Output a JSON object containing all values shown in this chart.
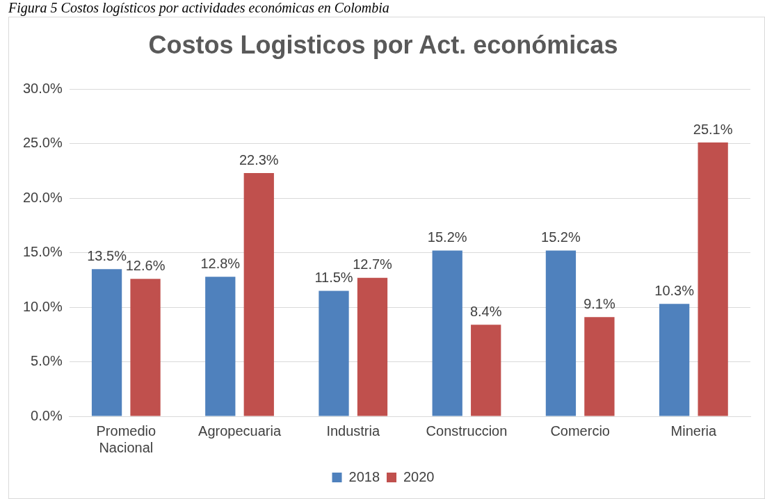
{
  "chart_data": {
    "type": "bar",
    "title": "Costos Logisticos por Act. económicas",
    "categories": [
      "Promedio Nacional",
      "Agropecuaria",
      "Industria",
      "Construccion",
      "Comercio",
      "Mineria"
    ],
    "series": [
      {
        "name": "2018",
        "color": "#4f81bd",
        "values": [
          13.5,
          12.8,
          11.5,
          15.2,
          15.2,
          10.3
        ],
        "value_labels": [
          "13.5%",
          "12.8%",
          "11.5%",
          "15.2%",
          "15.2%",
          "10.3%"
        ]
      },
      {
        "name": "2020",
        "color": "#c0504d",
        "values": [
          12.6,
          22.3,
          12.7,
          8.4,
          9.1,
          25.1
        ],
        "value_labels": [
          "12.6%",
          "22.3%",
          "12.7%",
          "8.4%",
          "9.1%",
          "25.1%"
        ]
      }
    ],
    "ylim": [
      0,
      30
    ],
    "yticks": [
      {
        "value": 0,
        "label": "0.0%"
      },
      {
        "value": 5,
        "label": "5.0%"
      },
      {
        "value": 10,
        "label": "10.0%"
      },
      {
        "value": 15,
        "label": "15.0%"
      },
      {
        "value": 20,
        "label": "20.0%"
      },
      {
        "value": 25,
        "label": "25.0%"
      },
      {
        "value": 30,
        "label": "30.0%"
      }
    ],
    "grid": "y",
    "legend": "bottom",
    "annotations": [
      "Figura 5 Costos logísticos por actividades económicas en Colombia"
    ]
  }
}
